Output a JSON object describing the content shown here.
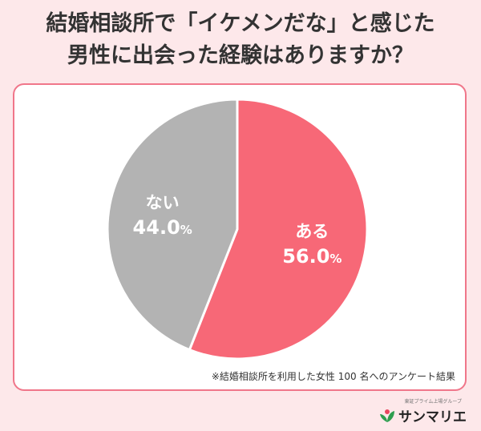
{
  "title_line1": "結婚相談所で「イケメンだな」と感じた",
  "title_line2": "男性に出会った経験はありますか？",
  "note": "※結婚相談所を利用した女性 100 名へのアンケート結果",
  "brand": {
    "subtitle": "東証プライム上場グループ",
    "name": "サンマリエ",
    "logo_icon": "leaf-icon"
  },
  "colors": {
    "background": "#fde8ea",
    "border": "#f0768a",
    "slice_yes": "#f76877",
    "slice_no": "#b3b3b3",
    "logo_green": "#2e9e4f"
  },
  "chart_data": {
    "type": "pie",
    "title": "結婚相談所で「イケメンだな」と感じた男性に出会った経験はありますか？",
    "start": "12 o'clock, clockwise",
    "slices": [
      {
        "label": "ある",
        "value": 56.0,
        "display": "56.0",
        "unit": "%",
        "color": "#f76877"
      },
      {
        "label": "ない",
        "value": 44.0,
        "display": "44.0",
        "unit": "%",
        "color": "#b3b3b3"
      }
    ]
  }
}
